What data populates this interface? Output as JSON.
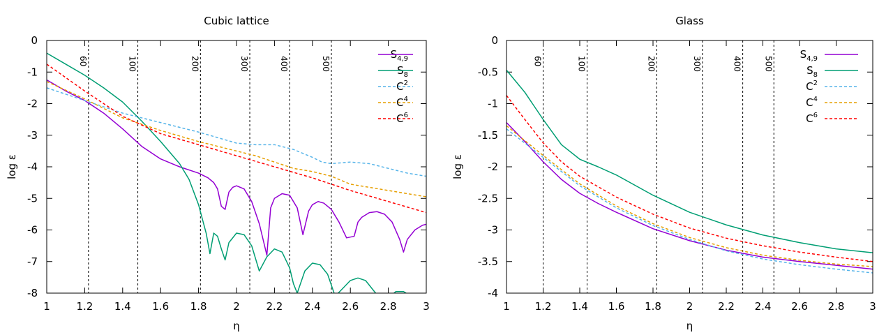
{
  "chart_data": [
    {
      "type": "line",
      "title": "Cubic lattice",
      "xlabel": "η",
      "ylabel": "log ε",
      "xlim": [
        1,
        3
      ],
      "ylim": [
        -8,
        0
      ],
      "xticks": [
        1,
        1.2,
        1.4,
        1.6,
        1.8,
        2,
        2.2,
        2.4,
        2.6,
        2.8,
        3
      ],
      "xtick_labels": [
        "1",
        "1.2",
        "1.4",
        "1.6",
        "1.8",
        "2",
        "2.2",
        "2.4",
        "2.6",
        "2.8",
        "3"
      ],
      "yticks": [
        0,
        -1,
        -2,
        -3,
        -4,
        -5,
        -6,
        -7,
        -8
      ],
      "ytick_labels": [
        "0",
        "-1",
        "-2",
        "-3",
        "-4",
        "-5",
        "-6",
        "-7",
        "-8"
      ],
      "vlines": [
        {
          "x": 1.22,
          "label": "60"
        },
        {
          "x": 1.48,
          "label": "100"
        },
        {
          "x": 1.81,
          "label": "200"
        },
        {
          "x": 2.07,
          "label": "300"
        },
        {
          "x": 2.28,
          "label": "400"
        },
        {
          "x": 2.5,
          "label": "500"
        }
      ],
      "series": [
        {
          "name": "S4,9",
          "base": "S",
          "sub": "4,9",
          "sup": "",
          "color": "#9400d3",
          "dash": "solid",
          "x": [
            1,
            1.1,
            1.2,
            1.3,
            1.4,
            1.5,
            1.6,
            1.7,
            1.8,
            1.85,
            1.88,
            1.9,
            1.92,
            1.94,
            1.96,
            1.98,
            2.0,
            2.04,
            2.08,
            2.12,
            2.16,
            2.18,
            2.2,
            2.24,
            2.28,
            2.32,
            2.35,
            2.38,
            2.4,
            2.43,
            2.46,
            2.5,
            2.54,
            2.58,
            2.62,
            2.64,
            2.66,
            2.7,
            2.74,
            2.78,
            2.82,
            2.86,
            2.88,
            2.9,
            2.94,
            2.98,
            3.0
          ],
          "y": [
            -1.25,
            -1.6,
            -1.9,
            -2.3,
            -2.8,
            -3.35,
            -3.75,
            -4.0,
            -4.2,
            -4.35,
            -4.5,
            -4.7,
            -5.25,
            -5.35,
            -4.8,
            -4.65,
            -4.6,
            -4.7,
            -5.1,
            -5.8,
            -6.8,
            -5.3,
            -5.0,
            -4.85,
            -4.9,
            -5.3,
            -6.15,
            -5.4,
            -5.2,
            -5.1,
            -5.15,
            -5.35,
            -5.75,
            -6.25,
            -6.2,
            -5.75,
            -5.6,
            -5.45,
            -5.42,
            -5.5,
            -5.75,
            -6.3,
            -6.7,
            -6.3,
            -6.0,
            -5.85,
            -5.82
          ]
        },
        {
          "name": "S8",
          "base": "S",
          "sub": "8",
          "sup": "",
          "color": "#009e73",
          "dash": "solid",
          "x": [
            1,
            1.1,
            1.2,
            1.3,
            1.4,
            1.5,
            1.6,
            1.7,
            1.75,
            1.8,
            1.84,
            1.86,
            1.88,
            1.9,
            1.92,
            1.94,
            1.96,
            2.0,
            2.04,
            2.08,
            2.12,
            2.16,
            2.2,
            2.24,
            2.28,
            2.3,
            2.32,
            2.36,
            2.4,
            2.44,
            2.48,
            2.52,
            2.56,
            2.6,
            2.64,
            2.68,
            2.72,
            2.76,
            2.8,
            2.84,
            2.88,
            2.92
          ],
          "y": [
            -0.4,
            -0.75,
            -1.1,
            -1.5,
            -1.95,
            -2.55,
            -3.2,
            -3.9,
            -4.4,
            -5.2,
            -6.1,
            -6.75,
            -6.1,
            -6.2,
            -6.6,
            -6.95,
            -6.4,
            -6.1,
            -6.15,
            -6.5,
            -7.3,
            -6.85,
            -6.6,
            -6.7,
            -7.2,
            -7.7,
            -8.0,
            -7.3,
            -7.05,
            -7.1,
            -7.4,
            -8.1,
            -7.85,
            -7.6,
            -7.52,
            -7.6,
            -7.9,
            -8.2,
            -8.15,
            -7.95,
            -7.95,
            -8.1
          ]
        },
        {
          "name": "C2",
          "base": "C",
          "sub": "",
          "sup": "2",
          "color": "#56b4e9",
          "dash": "dash",
          "x": [
            1,
            1.2,
            1.4,
            1.6,
            1.8,
            2.0,
            2.1,
            2.2,
            2.3,
            2.4,
            2.45,
            2.5,
            2.6,
            2.7,
            2.8,
            2.9,
            3.0
          ],
          "y": [
            -1.5,
            -1.9,
            -2.3,
            -2.6,
            -2.9,
            -3.25,
            -3.3,
            -3.3,
            -3.45,
            -3.7,
            -3.85,
            -3.9,
            -3.85,
            -3.9,
            -4.05,
            -4.2,
            -4.3
          ]
        },
        {
          "name": "C4",
          "base": "C",
          "sub": "",
          "sup": "4",
          "color": "#e69f00",
          "dash": "dash",
          "x": [
            1,
            1.2,
            1.4,
            1.6,
            1.8,
            2.0,
            2.1,
            2.2,
            2.3,
            2.4,
            2.5,
            2.6,
            2.7,
            2.8,
            2.9,
            3.0
          ],
          "y": [
            -1.3,
            -1.85,
            -2.45,
            -2.85,
            -3.2,
            -3.5,
            -3.65,
            -3.85,
            -4.05,
            -4.15,
            -4.3,
            -4.55,
            -4.65,
            -4.75,
            -4.85,
            -4.95
          ]
        },
        {
          "name": "C6",
          "base": "C",
          "sub": "",
          "sup": "6",
          "color": "#ff0000",
          "dash": "dash",
          "x": [
            1,
            1.2,
            1.4,
            1.6,
            1.8,
            2.0,
            2.2,
            2.4,
            2.6,
            2.8,
            3.0
          ],
          "y": [
            -0.75,
            -1.6,
            -2.4,
            -2.95,
            -3.3,
            -3.65,
            -4.0,
            -4.35,
            -4.75,
            -5.1,
            -5.45
          ]
        }
      ]
    },
    {
      "type": "line",
      "title": "Glass",
      "xlabel": "η",
      "ylabel": "log ε",
      "xlim": [
        1,
        3
      ],
      "ylim": [
        -4,
        0
      ],
      "xticks": [
        1,
        1.2,
        1.4,
        1.6,
        1.8,
        2,
        2.2,
        2.4,
        2.6,
        2.8,
        3
      ],
      "xtick_labels": [
        "1",
        "1.2",
        "1.4",
        "1.6",
        "1.8",
        "2",
        "2.2",
        "2.4",
        "2.6",
        "2.8",
        "3"
      ],
      "yticks": [
        0,
        -0.5,
        -1,
        -1.5,
        -2,
        -2.5,
        -3,
        -3.5,
        -4
      ],
      "ytick_labels": [
        "0",
        "-0.5",
        "-1",
        "-1.5",
        "-2",
        "-2.5",
        "-3",
        "-3.5",
        "-4"
      ],
      "vlines": [
        {
          "x": 1.2,
          "label": "60"
        },
        {
          "x": 1.44,
          "label": "100"
        },
        {
          "x": 1.82,
          "label": "200"
        },
        {
          "x": 2.07,
          "label": "300"
        },
        {
          "x": 2.29,
          "label": "400"
        },
        {
          "x": 2.46,
          "label": "500"
        }
      ],
      "series": [
        {
          "name": "S4,9",
          "base": "S",
          "sub": "4,9",
          "sup": "",
          "color": "#9400d3",
          "dash": "solid",
          "x": [
            1,
            1.1,
            1.2,
            1.3,
            1.4,
            1.5,
            1.6,
            1.8,
            2.0,
            2.2,
            2.4,
            2.6,
            2.8,
            3.0
          ],
          "y": [
            -1.3,
            -1.6,
            -1.92,
            -2.2,
            -2.42,
            -2.58,
            -2.72,
            -2.98,
            -3.17,
            -3.32,
            -3.43,
            -3.5,
            -3.56,
            -3.62
          ]
        },
        {
          "name": "S8",
          "base": "S",
          "sub": "8",
          "sup": "",
          "color": "#009e73",
          "dash": "solid",
          "x": [
            1,
            1.1,
            1.2,
            1.3,
            1.4,
            1.5,
            1.6,
            1.8,
            2.0,
            2.2,
            2.4,
            2.6,
            2.8,
            3.0
          ],
          "y": [
            -0.47,
            -0.82,
            -1.25,
            -1.65,
            -1.88,
            -2.0,
            -2.13,
            -2.45,
            -2.72,
            -2.92,
            -3.08,
            -3.2,
            -3.3,
            -3.36
          ]
        },
        {
          "name": "C2",
          "base": "C",
          "sub": "",
          "sup": "2",
          "color": "#56b4e9",
          "dash": "dash",
          "x": [
            1,
            1.2,
            1.4,
            1.6,
            1.8,
            2.0,
            2.2,
            2.4,
            2.6,
            2.8,
            3.0
          ],
          "y": [
            -1.4,
            -1.85,
            -2.3,
            -2.65,
            -2.93,
            -3.15,
            -3.33,
            -3.46,
            -3.55,
            -3.62,
            -3.68
          ]
        },
        {
          "name": "C4",
          "base": "C",
          "sub": "",
          "sup": "4",
          "color": "#e69f00",
          "dash": "dash",
          "x": [
            1,
            1.2,
            1.4,
            1.6,
            1.8,
            2.0,
            2.2,
            2.4,
            2.6,
            2.8,
            3.0
          ],
          "y": [
            -1.35,
            -1.82,
            -2.27,
            -2.62,
            -2.9,
            -3.12,
            -3.28,
            -3.4,
            -3.48,
            -3.54,
            -3.58
          ]
        },
        {
          "name": "C6",
          "base": "C",
          "sub": "",
          "sup": "6",
          "color": "#ff0000",
          "dash": "dash",
          "x": [
            1,
            1.1,
            1.2,
            1.3,
            1.4,
            1.6,
            1.8,
            2.0,
            2.2,
            2.4,
            2.6,
            2.8,
            3.0
          ],
          "y": [
            -0.87,
            -1.25,
            -1.62,
            -1.92,
            -2.15,
            -2.48,
            -2.75,
            -2.97,
            -3.13,
            -3.25,
            -3.35,
            -3.43,
            -3.5
          ]
        }
      ]
    }
  ]
}
